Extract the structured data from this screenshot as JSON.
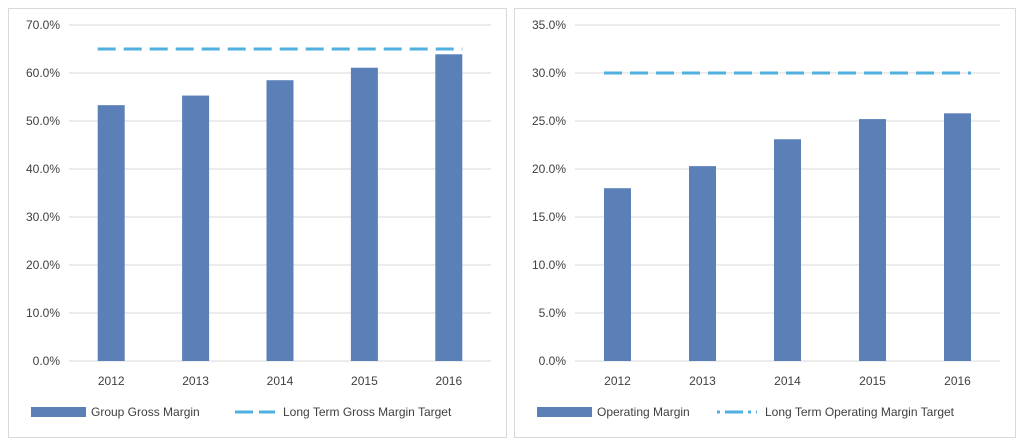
{
  "colors": {
    "bar": "#5b80b8",
    "target_line": "#4fb0e0",
    "grid": "#d9d9d9",
    "text": "#404040",
    "border": "#d9d9d9"
  },
  "chart_data": [
    {
      "type": "bar",
      "categories": [
        "2012",
        "2013",
        "2014",
        "2015",
        "2016"
      ],
      "series": [
        {
          "name": "Group Gross Margin",
          "type": "bar",
          "values": [
            53.3,
            55.3,
            58.5,
            61.1,
            63.9
          ]
        },
        {
          "name": "Long Term Gross Margin Target",
          "type": "line",
          "style": "dashed",
          "values": [
            65.0,
            65.0,
            65.0,
            65.0,
            65.0
          ]
        }
      ],
      "ylim": [
        0,
        70
      ],
      "yticks": [
        "0.0%",
        "10.0%",
        "20.0%",
        "30.0%",
        "40.0%",
        "50.0%",
        "60.0%",
        "70.0%"
      ],
      "ytick_values": [
        0,
        10,
        20,
        30,
        40,
        50,
        60,
        70
      ],
      "grid": true,
      "legend_position": "bottom"
    },
    {
      "type": "bar",
      "categories": [
        "2012",
        "2013",
        "2014",
        "2015",
        "2016"
      ],
      "series": [
        {
          "name": "Operating Margin",
          "type": "bar",
          "values": [
            18.0,
            20.3,
            23.1,
            25.2,
            25.8
          ]
        },
        {
          "name": "Long Term Operating Margin Target",
          "type": "line",
          "style": "dashed",
          "values": [
            30.0,
            30.0,
            30.0,
            30.0,
            30.0
          ]
        }
      ],
      "ylim": [
        0,
        35
      ],
      "yticks": [
        "0.0%",
        "5.0%",
        "10.0%",
        "15.0%",
        "20.0%",
        "25.0%",
        "30.0%",
        "35.0%"
      ],
      "ytick_values": [
        0,
        5,
        10,
        15,
        20,
        25,
        30,
        35
      ],
      "grid": true,
      "legend_position": "bottom"
    }
  ]
}
